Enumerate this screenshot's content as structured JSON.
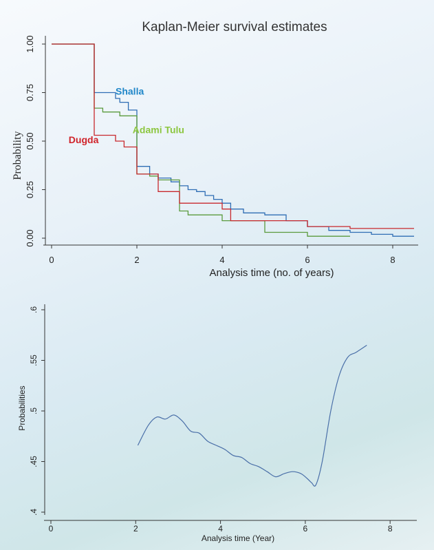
{
  "chart_data": [
    {
      "type": "line",
      "step": true,
      "title": "Kaplan-Meier survival estimates",
      "xlabel": "Analysis time (no. of years)",
      "ylabel": "Probability",
      "xlim": [
        0,
        8.5
      ],
      "ylim": [
        0,
        1
      ],
      "xticks": [
        0,
        2,
        4,
        6,
        8
      ],
      "yticks": [
        0.0,
        0.25,
        0.5,
        0.75,
        1.0
      ],
      "ytick_labels": [
        "0.00",
        "0.25",
        "0.50",
        "0.75",
        "1.00"
      ],
      "grid": false,
      "legend": "inline labels",
      "series": [
        {
          "name": "Shalla",
          "color": "#2e6db4",
          "label_color": "#1f86c8",
          "x": [
            0,
            1.0,
            1.5,
            1.6,
            1.8,
            2.0,
            2.3,
            2.5,
            2.8,
            3.0,
            3.2,
            3.4,
            3.6,
            3.8,
            4.0,
            4.2,
            4.5,
            5.0,
            5.5,
            6.0,
            6.5,
            7.0,
            7.5,
            8.0,
            8.5
          ],
          "y": [
            1.0,
            0.75,
            0.72,
            0.7,
            0.66,
            0.37,
            0.33,
            0.31,
            0.29,
            0.27,
            0.25,
            0.24,
            0.22,
            0.2,
            0.18,
            0.15,
            0.13,
            0.12,
            0.09,
            0.06,
            0.04,
            0.03,
            0.02,
            0.01,
            0.01
          ]
        },
        {
          "name": "Adami Tulu",
          "color": "#5a9a3c",
          "label_color": "#8cc63f",
          "x": [
            0,
            1.0,
            1.2,
            1.6,
            2.0,
            2.3,
            2.5,
            3.0,
            3.2,
            4.0,
            5.0,
            6.0,
            7.0
          ],
          "y": [
            1.0,
            0.67,
            0.65,
            0.63,
            0.33,
            0.32,
            0.3,
            0.14,
            0.12,
            0.09,
            0.03,
            0.01,
            0.01
          ]
        },
        {
          "name": "Dugda",
          "color": "#c8282d",
          "label_color": "#d0232a",
          "x": [
            0,
            1.0,
            1.5,
            1.7,
            2.0,
            2.5,
            3.0,
            4.0,
            4.2,
            5.0,
            5.5,
            6.0,
            7.0,
            8.0,
            8.5
          ],
          "y": [
            1.0,
            0.53,
            0.5,
            0.47,
            0.33,
            0.24,
            0.18,
            0.15,
            0.09,
            0.09,
            0.09,
            0.06,
            0.05,
            0.05,
            0.05
          ]
        }
      ]
    },
    {
      "type": "line",
      "xlabel": "Analysis time (Year)",
      "ylabel": "Probabilities",
      "xlim": [
        0,
        8.5
      ],
      "ylim": [
        0.4,
        0.6
      ],
      "xticks": [
        0,
        2,
        4,
        6,
        8
      ],
      "yticks": [
        0.4,
        0.45,
        0.5,
        0.55,
        0.6
      ],
      "ytick_labels": [
        ".4",
        ".45",
        ".5",
        ".55",
        ".6"
      ],
      "grid": false,
      "series": [
        {
          "color": "#4a6fa8",
          "x": [
            2.05,
            2.3,
            2.5,
            2.7,
            2.9,
            3.1,
            3.3,
            3.5,
            3.7,
            3.9,
            4.1,
            4.3,
            4.5,
            4.7,
            4.9,
            5.1,
            5.3,
            5.5,
            5.7,
            5.9,
            6.05,
            6.15,
            6.25,
            6.4,
            6.6,
            6.8,
            7.0,
            7.2,
            7.45
          ],
          "y": [
            0.466,
            0.486,
            0.494,
            0.492,
            0.496,
            0.49,
            0.48,
            0.478,
            0.47,
            0.466,
            0.462,
            0.456,
            0.454,
            0.448,
            0.445,
            0.44,
            0.435,
            0.438,
            0.44,
            0.438,
            0.433,
            0.429,
            0.427,
            0.45,
            0.5,
            0.535,
            0.553,
            0.558,
            0.565
          ]
        }
      ]
    }
  ]
}
